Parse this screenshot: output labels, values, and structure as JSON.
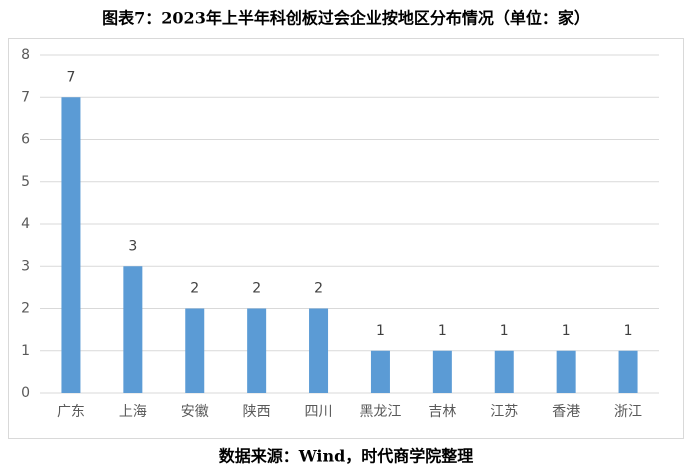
{
  "chart_data": {
    "type": "bar",
    "title": "图表7：2023年上半年科创板过会企业按地区分布情况（单位：家）",
    "source": "数据来源：Wind，时代商学院整理",
    "categories": [
      "广东",
      "上海",
      "安徽",
      "陕西",
      "四川",
      "黑龙江",
      "吉林",
      "江苏",
      "香港",
      "浙江"
    ],
    "values": [
      7,
      3,
      2,
      2,
      2,
      1,
      1,
      1,
      1,
      1
    ],
    "color": "#5b9bd5",
    "ylim": [
      0,
      8
    ],
    "yticks": [
      0,
      1,
      2,
      3,
      4,
      5,
      6,
      7,
      8
    ],
    "grid": true
  }
}
